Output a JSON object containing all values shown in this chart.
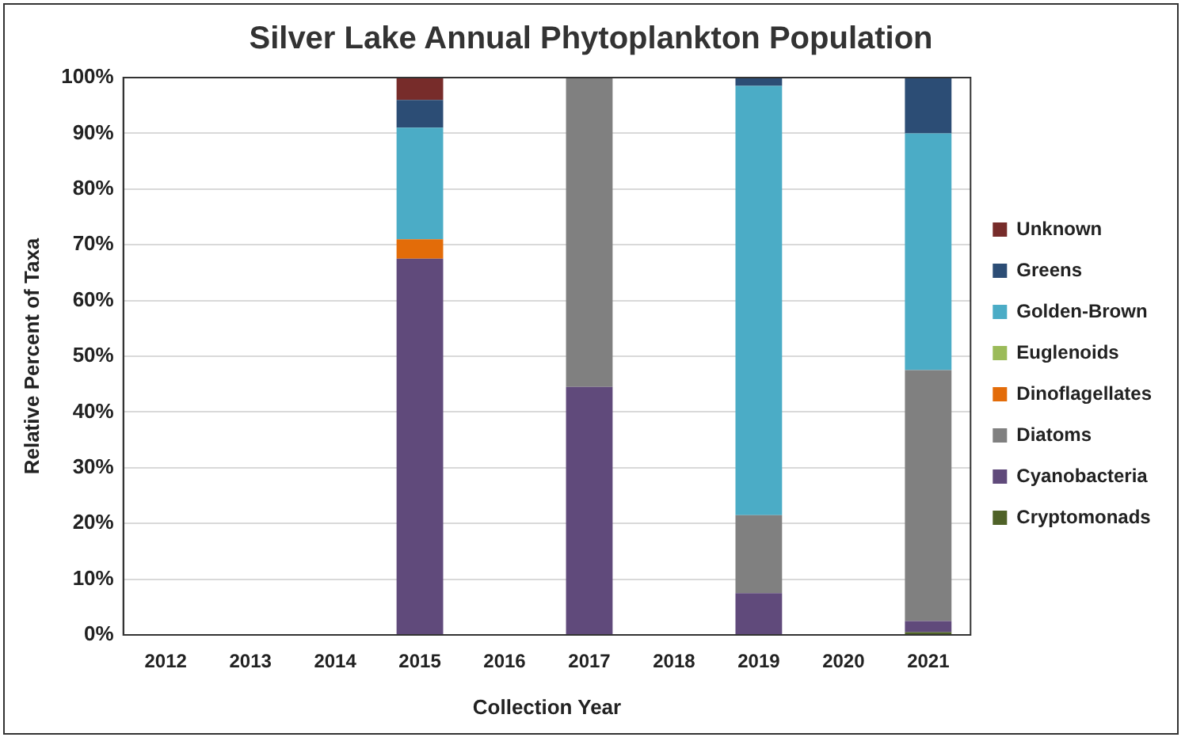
{
  "chart_data": {
    "type": "bar",
    "title": "Silver Lake Annual Phytoplankton Population",
    "xlabel": "Collection Year",
    "ylabel": "Relative Percent of Taxa",
    "categories": [
      "2012",
      "2013",
      "2014",
      "2015",
      "2016",
      "2017",
      "2018",
      "2019",
      "2020",
      "2021"
    ],
    "stacked": true,
    "ylim": [
      0,
      100
    ],
    "yticks": [
      {
        "value": 0,
        "label": "0%"
      },
      {
        "value": 10,
        "label": "10%"
      },
      {
        "value": 20,
        "label": "20%"
      },
      {
        "value": 30,
        "label": "30%"
      },
      {
        "value": 40,
        "label": "40%"
      },
      {
        "value": 50,
        "label": "50%"
      },
      {
        "value": 60,
        "label": "60%"
      },
      {
        "value": 70,
        "label": "70%"
      },
      {
        "value": 80,
        "label": "80%"
      },
      {
        "value": 90,
        "label": "90%"
      },
      {
        "value": 100,
        "label": "100%"
      }
    ],
    "grid": "y",
    "legend": "right",
    "series": [
      {
        "name": "Cryptomonads",
        "color": "#4f6228",
        "values": [
          null,
          null,
          null,
          null,
          null,
          null,
          null,
          null,
          null,
          0.5
        ]
      },
      {
        "name": "Cyanobacteria",
        "color": "#604a7b",
        "values": [
          null,
          null,
          null,
          67.5,
          null,
          44.5,
          null,
          7.5,
          null,
          2
        ]
      },
      {
        "name": "Diatoms",
        "color": "#808080",
        "values": [
          null,
          null,
          null,
          null,
          null,
          55.5,
          null,
          14,
          null,
          45
        ]
      },
      {
        "name": "Dinoflagellates",
        "color": "#e36c09",
        "values": [
          null,
          null,
          null,
          3.5,
          null,
          null,
          null,
          null,
          null,
          null
        ]
      },
      {
        "name": "Euglenoids",
        "color": "#9bbb59",
        "values": [
          null,
          null,
          null,
          null,
          null,
          null,
          null,
          null,
          null,
          null
        ]
      },
      {
        "name": "Golden-Brown",
        "color": "#4bacc6",
        "values": [
          null,
          null,
          null,
          20,
          null,
          null,
          null,
          77,
          null,
          42.5
        ]
      },
      {
        "name": "Greens",
        "color": "#2c4d75",
        "values": [
          null,
          null,
          null,
          5,
          null,
          null,
          null,
          1.5,
          null,
          10
        ]
      },
      {
        "name": "Unknown",
        "color": "#772c2a",
        "values": [
          null,
          null,
          null,
          4,
          null,
          null,
          null,
          null,
          null,
          null
        ]
      }
    ]
  }
}
